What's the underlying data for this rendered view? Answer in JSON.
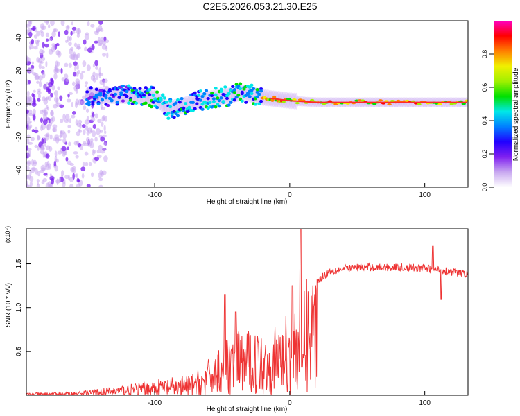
{
  "title": "C2E5.2026.053.21.30.E25",
  "chart_data": [
    {
      "type": "heatmap",
      "name": "spectrogram",
      "xlabel": "Height of straight line (km)",
      "ylabel": "Frequency (Hz)",
      "xlim": [
        -195,
        132
      ],
      "ylim": [
        -50,
        50
      ],
      "xticks": [
        -100,
        0,
        100
      ],
      "yticks": [
        -40,
        -20,
        0,
        20,
        40
      ],
      "colorbar": {
        "label": "Normalized spectral amplitude",
        "range": [
          0,
          1
        ],
        "ticks": [
          0.0,
          0.2,
          0.4,
          0.6,
          0.8
        ],
        "colors": [
          "#ffffff",
          "#c8a8f0",
          "#8020f0",
          "#2000ff",
          "#0080ff",
          "#00e8e8",
          "#00e000",
          "#a0f000",
          "#f0f000",
          "#ff8000",
          "#ff0000",
          "#ff00c0"
        ]
      },
      "centerline": [
        {
          "x": -150,
          "y": 5
        },
        {
          "x": -120,
          "y": 5
        },
        {
          "x": -100,
          "y": 4
        },
        {
          "x": -90,
          "y": -3
        },
        {
          "x": -75,
          "y": 0
        },
        {
          "x": -60,
          "y": 3
        },
        {
          "x": -45,
          "y": 5
        },
        {
          "x": -35,
          "y": 7
        },
        {
          "x": -20,
          "y": 4
        },
        {
          "x": 0,
          "y": 2
        },
        {
          "x": 20,
          "y": 1
        },
        {
          "x": 60,
          "y": 1
        },
        {
          "x": 100,
          "y": 1
        },
        {
          "x": 132,
          "y": 1
        }
      ]
    },
    {
      "type": "line",
      "name": "snr",
      "xlabel": "Height of straight line (km)",
      "ylabel": "SNR (10 * v/v)",
      "yscale_label": "(x10⁴)",
      "xlim": [
        -195,
        132
      ],
      "ylim": [
        0,
        1.9
      ],
      "xticks": [
        -100,
        0,
        100
      ],
      "yticks": [
        0.5,
        1.0,
        1.5
      ],
      "ytick_labels": [
        "0.5",
        "1.0",
        "1.5"
      ],
      "color": "#ee3333",
      "envelope": [
        {
          "x": -195,
          "y": 0.02
        },
        {
          "x": -160,
          "y": 0.03
        },
        {
          "x": -130,
          "y": 0.08
        },
        {
          "x": -110,
          "y": 0.12
        },
        {
          "x": -90,
          "y": 0.16
        },
        {
          "x": -75,
          "y": 0.18
        },
        {
          "x": -65,
          "y": 0.25
        },
        {
          "x": -55,
          "y": 0.42
        },
        {
          "x": -45,
          "y": 0.55
        },
        {
          "x": -35,
          "y": 0.62
        },
        {
          "x": -25,
          "y": 0.6
        },
        {
          "x": -15,
          "y": 0.6
        },
        {
          "x": -5,
          "y": 0.72
        },
        {
          "x": 5,
          "y": 0.9
        },
        {
          "x": 12,
          "y": 1.1
        },
        {
          "x": 20,
          "y": 1.3
        },
        {
          "x": 30,
          "y": 1.42
        },
        {
          "x": 50,
          "y": 1.46
        },
        {
          "x": 80,
          "y": 1.46
        },
        {
          "x": 100,
          "y": 1.45
        },
        {
          "x": 115,
          "y": 1.42
        },
        {
          "x": 132,
          "y": 1.38
        }
      ],
      "peaks": [
        {
          "x": -48,
          "y": 1.15
        },
        {
          "x": -40,
          "y": 0.95
        },
        {
          "x": 2,
          "y": 1.25
        },
        {
          "x": 8,
          "y": 1.9
        },
        {
          "x": 9,
          "y": 0.32
        },
        {
          "x": 106,
          "y": 1.7
        },
        {
          "x": 112,
          "y": 1.1
        }
      ]
    }
  ]
}
